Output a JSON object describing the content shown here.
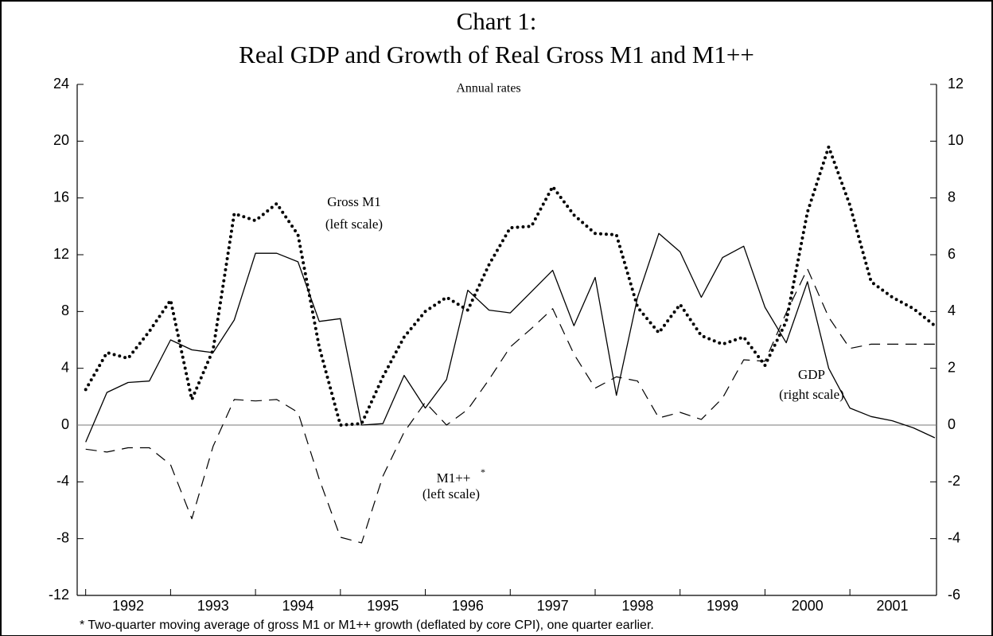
{
  "chart_data": {
    "type": "line",
    "title": [
      "Chart 1:",
      "Real GDP and Growth of Real Gross M1 and M1++"
    ],
    "note": "Annual rates",
    "footnote": "* Two-quarter moving average of gross M1 or M1++ growth (deflated by core CPI), one quarter earlier.",
    "annotations": [
      "Gross M1",
      "(left scale)",
      "M1++",
      "*",
      "(left scale)",
      "GDP",
      "(right scale)"
    ],
    "x": [
      1992,
      1992.25,
      1992.5,
      1992.75,
      1993,
      1993.25,
      1993.5,
      1993.75,
      1994,
      1994.25,
      1994.5,
      1994.75,
      1995,
      1995.25,
      1995.5,
      1995.75,
      1996,
      1996.25,
      1996.5,
      1996.75,
      1997,
      1997.25,
      1997.5,
      1997.75,
      1998,
      1998.25,
      1998.5,
      1998.75,
      1999,
      1999.25,
      1999.5,
      1999.75,
      2000,
      2000.25,
      2000.5,
      2000.75,
      2001,
      2001.25,
      2001.5,
      2001.75,
      2002
    ],
    "xlim": [
      1991.9,
      2002.02
    ],
    "xticks": [
      1992,
      1993,
      1994,
      1995,
      1996,
      1997,
      1998,
      1999,
      2000,
      2001
    ],
    "ylim": [
      -12,
      24
    ],
    "yticks": [
      -12,
      -8,
      -4,
      0,
      4,
      8,
      12,
      16,
      20,
      24
    ],
    "y2lim": [
      -6,
      12
    ],
    "y2ticks": [
      -6,
      -4,
      -2,
      0,
      2,
      4,
      6,
      8,
      10,
      12
    ],
    "zero_line": true,
    "series": [
      {
        "name": "Gross M1",
        "color": "#000000",
        "style": "dotted",
        "axis": "y",
        "values": [
          2.5,
          5.1,
          4.7,
          6.6,
          8.8,
          1.8,
          5.3,
          14.9,
          14.4,
          15.6,
          13.4,
          5.5,
          0.0,
          0.1,
          3.4,
          6.2,
          8.0,
          9.0,
          8.1,
          11.3,
          13.9,
          14.0,
          16.8,
          14.8,
          13.5,
          13.4,
          8.3,
          6.5,
          8.5,
          6.3,
          5.7,
          6.2,
          4.2,
          7.3,
          15.0,
          19.6,
          15.5,
          10.1,
          9.0,
          8.2,
          7.0
        ]
      },
      {
        "name": "M1++",
        "color": "#000000",
        "style": "dashed",
        "axis": "y",
        "values": [
          -1.7,
          -1.9,
          -1.6,
          -1.6,
          -2.8,
          -6.6,
          -1.5,
          1.8,
          1.7,
          1.8,
          0.9,
          -3.8,
          -7.9,
          -8.3,
          -3.6,
          -0.5,
          1.6,
          0.0,
          1.1,
          3.2,
          5.5,
          6.8,
          8.2,
          5.0,
          2.6,
          3.4,
          3.1,
          0.5,
          0.9,
          0.4,
          1.9,
          4.6,
          4.5,
          7.9,
          11.0,
          7.6,
          5.4,
          5.7,
          5.7,
          5.7,
          5.7
        ]
      },
      {
        "name": "GDP",
        "color": "#000000",
        "style": "solid",
        "axis": "y2",
        "values": [
          -0.6,
          1.15,
          1.5,
          1.55,
          3.0,
          2.65,
          2.55,
          3.7,
          6.05,
          6.05,
          5.75,
          3.65,
          3.75,
          0,
          0.05,
          1.75,
          0.6,
          1.6,
          4.75,
          4.05,
          3.95,
          4.7,
          5.45,
          3.5,
          5.2,
          1.05,
          4.5,
          6.75,
          6.1,
          4.5,
          5.9,
          6.3,
          4.15,
          2.9,
          5.05,
          2.0,
          0.6,
          0.3,
          0.15,
          -0.1,
          -0.45
        ]
      }
    ]
  }
}
